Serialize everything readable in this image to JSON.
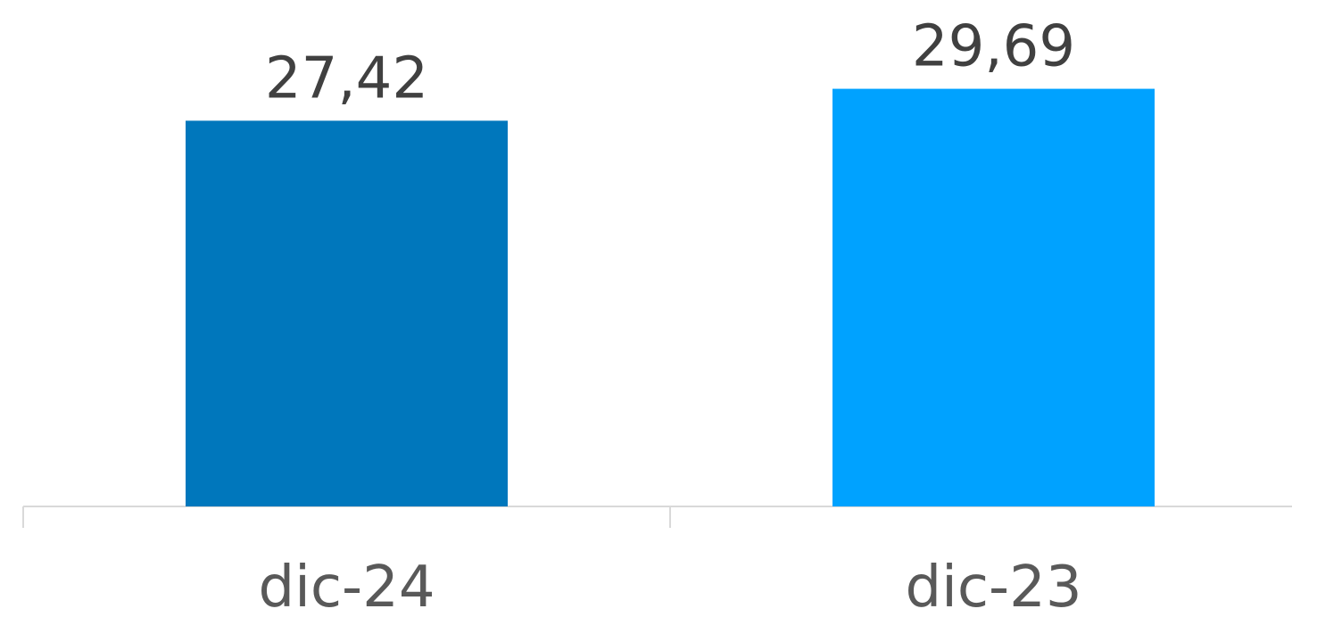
{
  "chart_data": {
    "type": "bar",
    "categories": [
      "dic-24",
      "dic-23"
    ],
    "values": [
      27.42,
      29.69
    ],
    "value_labels": [
      "27,42",
      "29,69"
    ],
    "colors": [
      "#0077BC",
      "#00A2FF"
    ],
    "axis_color": "#D9D9D9",
    "title": "",
    "xlabel": "",
    "ylabel": "",
    "ylim": [
      0,
      32.5
    ],
    "grid": false,
    "legend": "none"
  }
}
